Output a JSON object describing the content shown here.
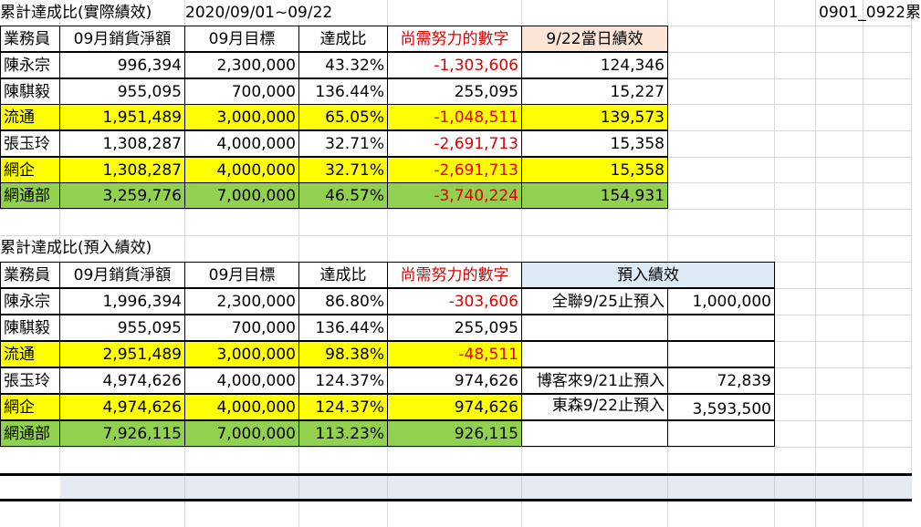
{
  "header": {
    "title_actual": "累計達成比(實際績效)",
    "date_range": "2020/09/01~09/22",
    "file_ref": "0901_0922累"
  },
  "columns": [
    "業務員",
    "09月銷貨淨額",
    "09月目標",
    "達成比",
    "尚需努力的數字",
    "9/22當日績效"
  ],
  "actual_rows": [
    {
      "name": "陳永宗",
      "sales": "996,394",
      "target": "2,300,000",
      "ratio": "43.32%",
      "remaining": "-1,303,606",
      "daily": "124,346"
    },
    {
      "name": "陳騏毅",
      "sales": "955,095",
      "target": "700,000",
      "ratio": "136.44%",
      "remaining": "255,095",
      "daily": "15,227"
    },
    {
      "name": "流通",
      "sales": "1,951,489",
      "target": "3,000,000",
      "ratio": "65.05%",
      "remaining": "-1,048,511",
      "daily": "139,573"
    },
    {
      "name": "張玉玲",
      "sales": "1,308,287",
      "target": "4,000,000",
      "ratio": "32.71%",
      "remaining": "-2,691,713",
      "daily": "15,358"
    },
    {
      "name": "網企",
      "sales": "1,308,287",
      "target": "4,000,000",
      "ratio": "32.71%",
      "remaining": "-2,691,713",
      "daily": "15,358"
    },
    {
      "name": "網通部",
      "sales": "3,259,776",
      "target": "7,000,000",
      "ratio": "46.57%",
      "remaining": "-3,740,224",
      "daily": "154,931"
    }
  ],
  "preentry": {
    "title": "累計達成比(預入績效)",
    "columns": [
      "業務員",
      "09月銷貨淨額",
      "09月目標",
      "達成比",
      "尚需努力的數字",
      "預入績效"
    ],
    "rows": [
      {
        "name": "陳永宗",
        "sales": "1,996,394",
        "target": "2,300,000",
        "ratio": "86.80%",
        "remaining": "-303,606",
        "note_label": "全聯9/25止預入",
        "note_value": "1,000,000"
      },
      {
        "name": "陳騏毅",
        "sales": "955,095",
        "target": "700,000",
        "ratio": "136.44%",
        "remaining": "255,095",
        "note_label": "",
        "note_value": ""
      },
      {
        "name": "流通",
        "sales": "2,951,489",
        "target": "3,000,000",
        "ratio": "98.38%",
        "remaining": "-48,511",
        "note_label": "",
        "note_value": ""
      },
      {
        "name": "張玉玲",
        "sales": "4,974,626",
        "target": "4,000,000",
        "ratio": "124.37%",
        "remaining": "974,626",
        "note_label": "博客來9/21止預入",
        "note_value": "72,839"
      },
      {
        "name": "網企",
        "sales": "4,974,626",
        "target": "4,000,000",
        "ratio": "124.37%",
        "remaining": "974,626",
        "note_label": "東森9/22止預入",
        "note_value": "3,593,500"
      },
      {
        "name": "網通部",
        "sales": "7,926,115",
        "target": "7,000,000",
        "ratio": "113.23%",
        "remaining": "926,115",
        "note_label": "",
        "note_value": ""
      }
    ]
  },
  "colors": {
    "highlight_yellow": "#ffff00",
    "total_green": "#92d050",
    "header_peach": "#fce4d6",
    "header_lightblue": "#ddebf7",
    "negative_red": "#e00000"
  }
}
